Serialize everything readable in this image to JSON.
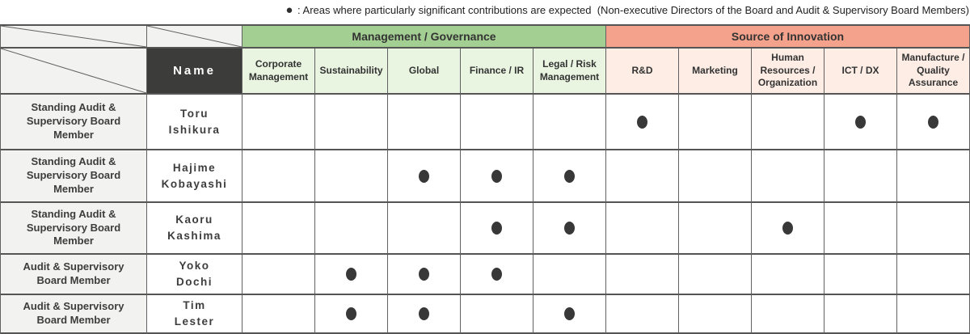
{
  "legend": {
    "bullet": "●",
    "text": " : Areas where particularly significant contributions are expected  (Non-executive Directors of the Board and Audit & Supervisory Board Members)"
  },
  "colors": {
    "green_group": "#a4cf93",
    "green_cell": "#e9f5e1",
    "salmon_group": "#f4a28b",
    "salmon_cell": "#fdede5",
    "dark_header": "#3c3c3a",
    "gray_cell": "#f2f2f1",
    "line_vertical": "#616161",
    "line_horizontal": "#555555",
    "dot": "#383838"
  },
  "table": {
    "name_header": "Name",
    "groups": [
      {
        "label": "Management / Governance",
        "theme": "g",
        "columns": [
          "Corporate Management",
          "Sustainability",
          "Global",
          "Finance / IR",
          "Legal / Risk Management"
        ]
      },
      {
        "label": "Source of Innovation",
        "theme": "p",
        "columns": [
          "R&D",
          "Marketing",
          "Human Resources / Organization",
          "ICT / DX",
          "Manufacture / Quality Assurance"
        ]
      }
    ],
    "rows": [
      {
        "role": "Standing Audit & Supervisory Board Member",
        "name_lines": [
          "Toru",
          "Ishikura"
        ],
        "marks": [
          0,
          0,
          0,
          0,
          0,
          1,
          0,
          0,
          1,
          1
        ]
      },
      {
        "role": "Standing Audit & Supervisory Board Member",
        "name_lines": [
          "Hajime",
          "Kobayashi"
        ],
        "marks": [
          0,
          0,
          1,
          1,
          1,
          0,
          0,
          0,
          0,
          0
        ]
      },
      {
        "role": "Standing Audit & Supervisory Board Member",
        "name_lines": [
          "Kaoru",
          "Kashima"
        ],
        "marks": [
          0,
          0,
          0,
          1,
          1,
          0,
          0,
          1,
          0,
          0
        ]
      },
      {
        "role": "Audit & Supervisory Board Member",
        "name_lines": [
          "Yoko",
          "Dochi"
        ],
        "marks": [
          0,
          1,
          1,
          1,
          0,
          0,
          0,
          0,
          0,
          0
        ]
      },
      {
        "role": "Audit & Supervisory Board Member",
        "name_lines": [
          "Tim",
          "Lester"
        ],
        "marks": [
          0,
          1,
          1,
          0,
          1,
          0,
          0,
          0,
          0,
          0
        ]
      }
    ]
  }
}
